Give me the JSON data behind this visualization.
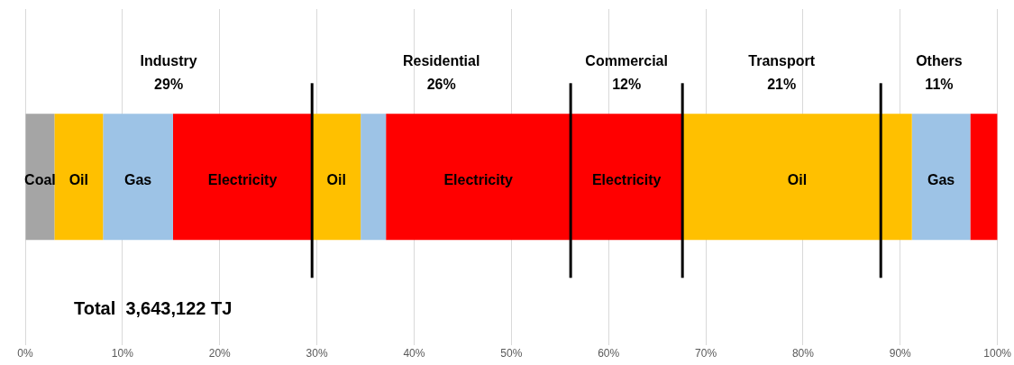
{
  "chart_data": {
    "type": "bar",
    "orientation": "horizontal",
    "stacked": true,
    "categories": [
      null
    ],
    "series": [
      {
        "name": "Coal",
        "color": "#a5a5a5",
        "values": [
          3.0
        ]
      },
      {
        "name": "Oil",
        "color": "#ffc000",
        "values": [
          5.0
        ]
      },
      {
        "name": "Gas",
        "color": "#9dc3e6",
        "values": [
          7.2
        ]
      },
      {
        "name": "Electricity",
        "color": "#ff0000",
        "values": [
          14.3
        ]
      },
      {
        "name": "Oil",
        "color": "#ffc000",
        "values": [
          5.0
        ]
      },
      {
        "color": "#9dc3e6",
        "values": [
          2.6
        ]
      },
      {
        "name": "Electricity",
        "color": "#ff0000",
        "values": [
          19.0
        ]
      },
      {
        "name": "Electricity",
        "color": "#ff0000",
        "values": [
          11.5
        ]
      },
      {
        "name": "Oil",
        "color": "#ffc000",
        "values": [
          23.6
        ]
      },
      {
        "name": "Gas",
        "color": "#9dc3e6",
        "values": [
          6.0
        ]
      },
      {
        "color": "#ff0000",
        "values": [
          2.8
        ]
      }
    ],
    "xlim": [
      0,
      100
    ],
    "xticks": [
      {
        "value": 0,
        "label": "0%"
      },
      {
        "value": 10,
        "label": "10%"
      },
      {
        "value": 20,
        "label": "20%"
      },
      {
        "value": 30,
        "label": "30%"
      },
      {
        "value": 40,
        "label": "40%"
      },
      {
        "value": 50,
        "label": "50%"
      },
      {
        "value": 60,
        "label": "60%"
      },
      {
        "value": 70,
        "label": "70%"
      },
      {
        "value": 80,
        "label": "80%"
      },
      {
        "value": 90,
        "label": "90%"
      },
      {
        "value": 100,
        "label": "100%"
      }
    ],
    "grid": "x",
    "legend": false,
    "tick_labels": "x",
    "ref_lines": [
      {
        "axis": "x",
        "value": 29.5,
        "color": "#000000"
      },
      {
        "axis": "x",
        "value": 56.1,
        "color": "#000000"
      },
      {
        "axis": "x",
        "value": 67.6,
        "color": "#000000"
      },
      {
        "axis": "x",
        "value": 88.0,
        "color": "#000000"
      }
    ],
    "annotations": [
      "Industry\n29%",
      "Residential\n26%",
      "Commercial\n12%",
      "Transport\n21%",
      "Others\n11%",
      "Total  3,643,122 TJ"
    ]
  }
}
